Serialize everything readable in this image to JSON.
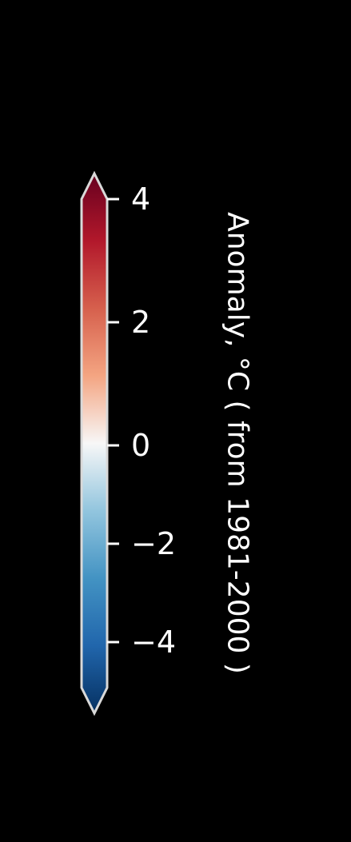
{
  "chart_data": {
    "type": "colorbar",
    "orientation": "vertical",
    "label": "Anomaly, °C ( from 1981-2000 )",
    "range": [
      -4.7,
      4.2
    ],
    "extend": "both",
    "ticks": [
      {
        "value": 4,
        "label": "4"
      },
      {
        "value": 2,
        "label": "2"
      },
      {
        "value": 0,
        "label": "0"
      },
      {
        "value": -2,
        "label": "−2"
      },
      {
        "value": -4,
        "label": "−4"
      }
    ],
    "colormap": "RdBu_r",
    "color_stops": [
      {
        "offset": 0.0,
        "color": "#67001f"
      },
      {
        "offset": 0.125,
        "color": "#b2182b"
      },
      {
        "offset": 0.25,
        "color": "#d6604d"
      },
      {
        "offset": 0.375,
        "color": "#f4a582"
      },
      {
        "offset": 0.5,
        "color": "#f7f7f7"
      },
      {
        "offset": 0.625,
        "color": "#92c5de"
      },
      {
        "offset": 0.75,
        "color": "#4393c3"
      },
      {
        "offset": 0.875,
        "color": "#2166ac"
      },
      {
        "offset": 1.0,
        "color": "#053061"
      }
    ],
    "outline_color": "#d9d9d9",
    "text_color": "#ffffff",
    "background": "#000000"
  }
}
